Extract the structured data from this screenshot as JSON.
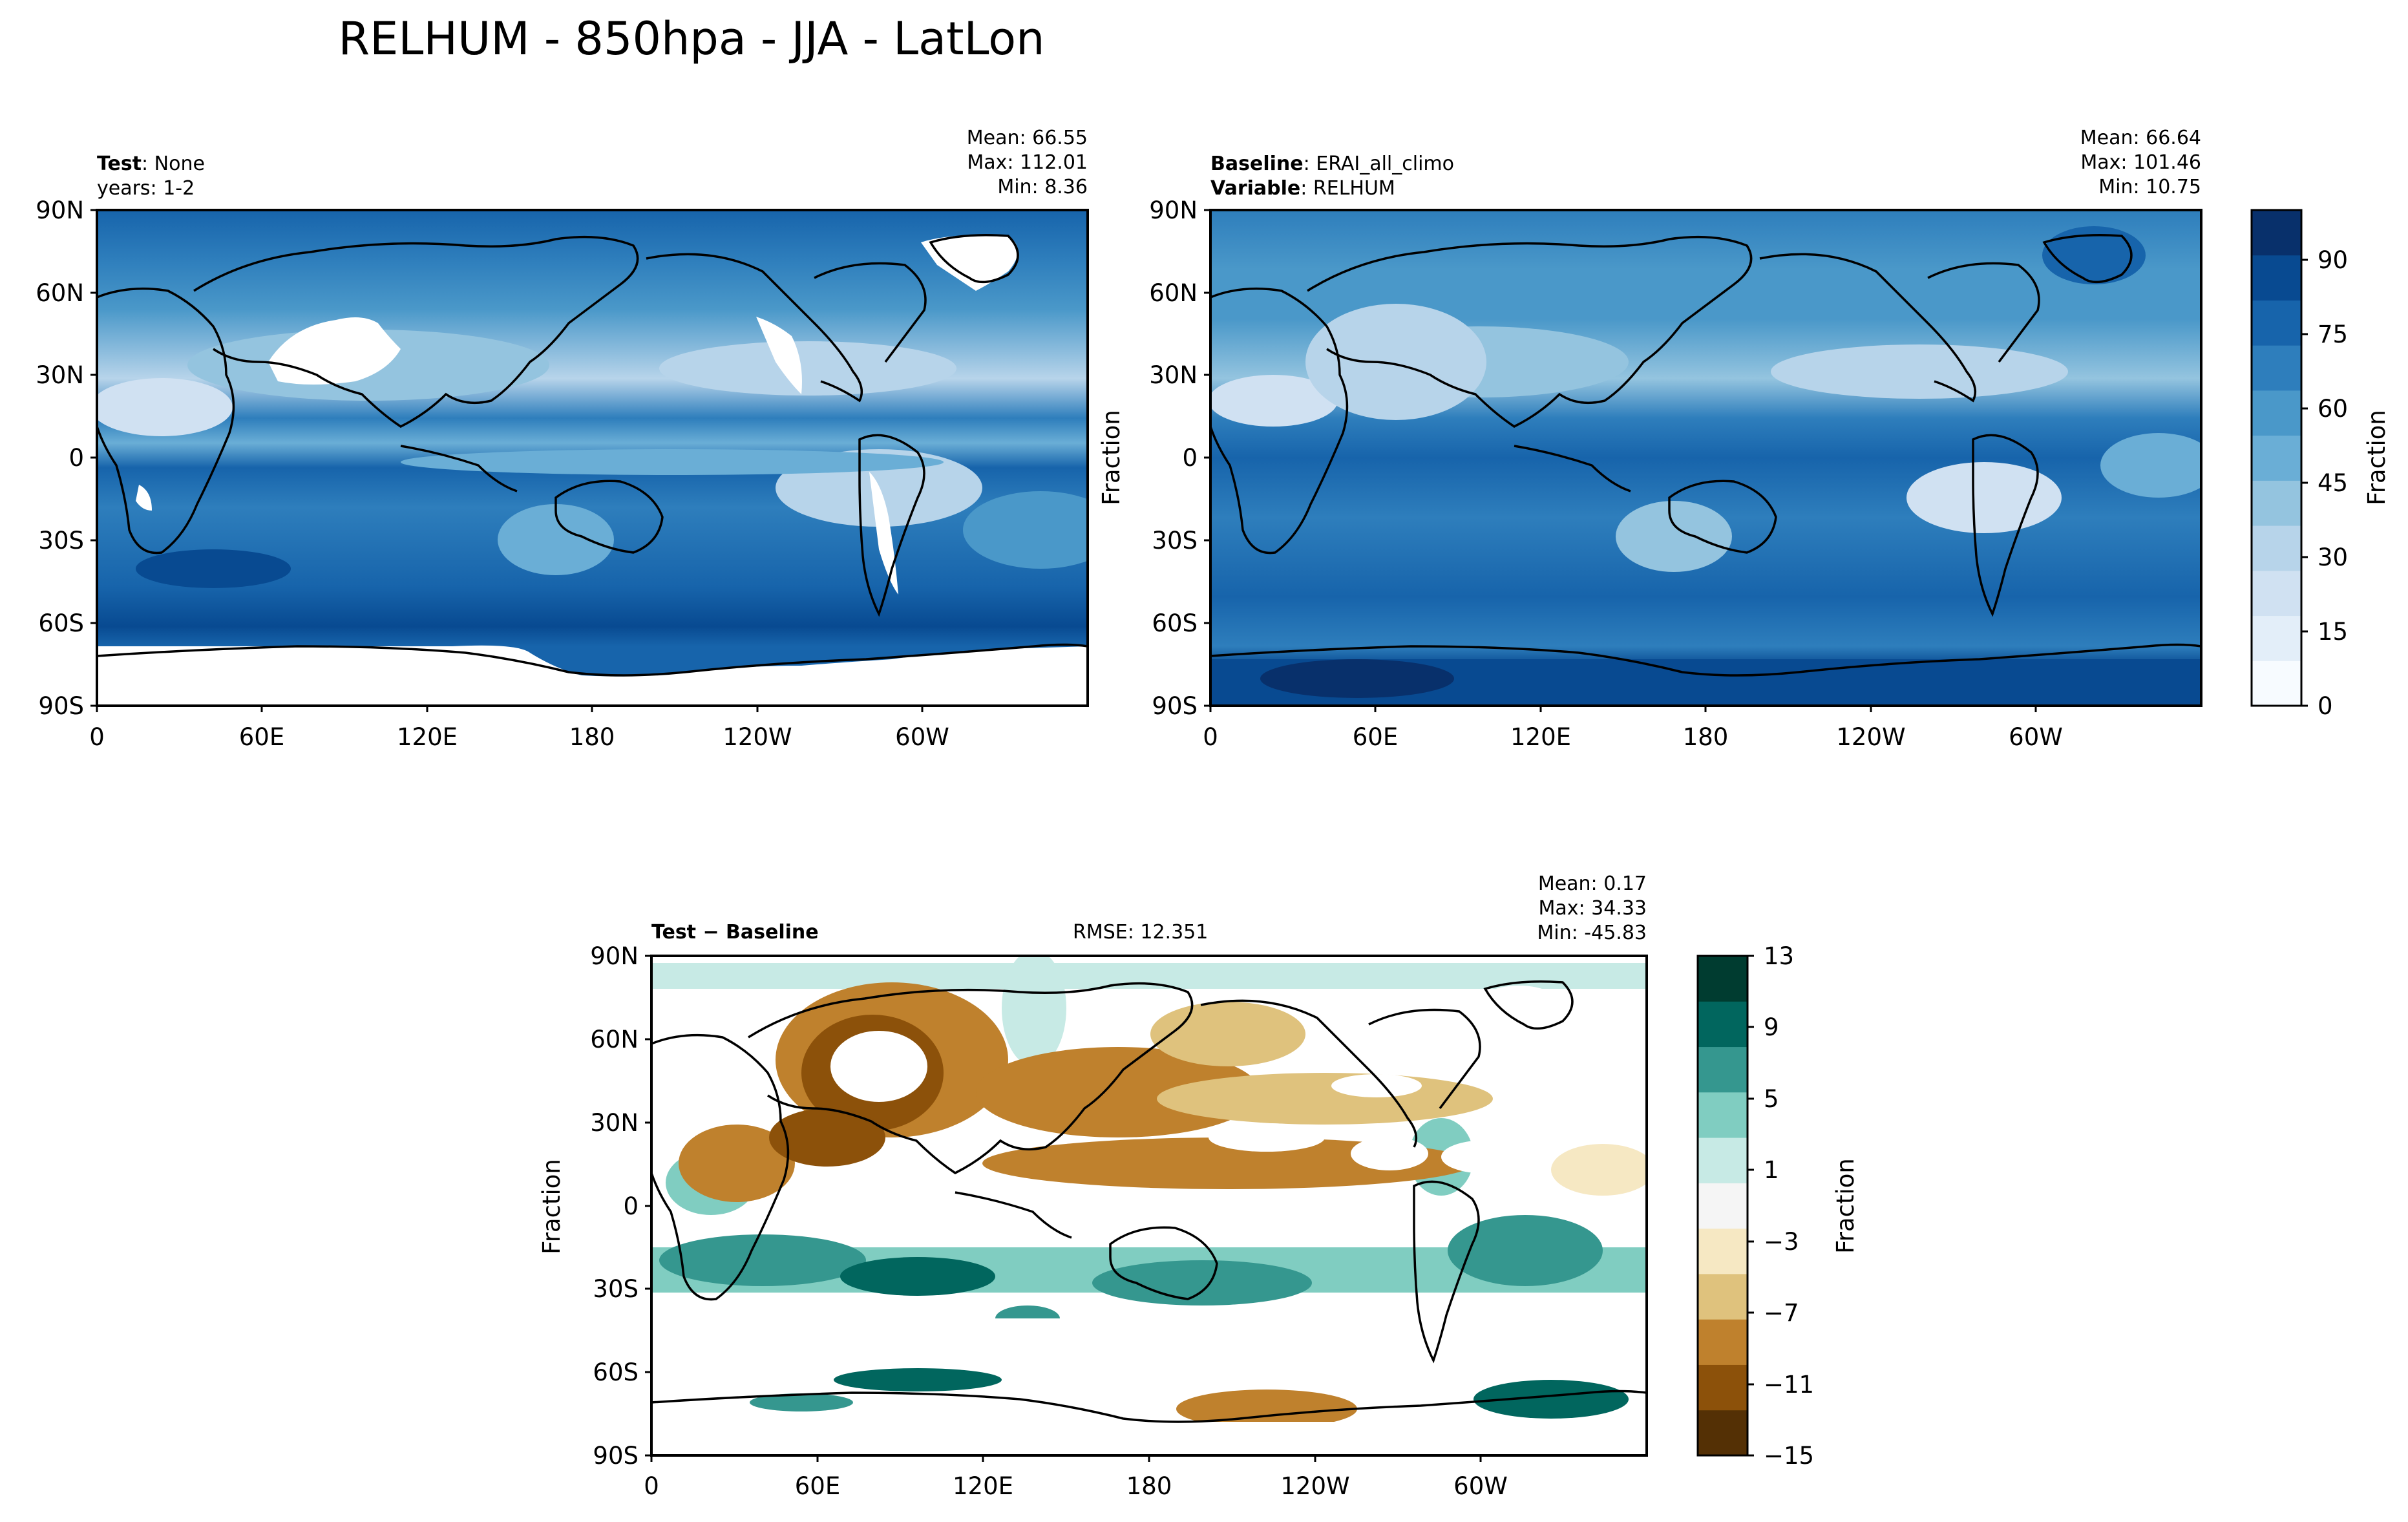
{
  "title": "RELHUM - 850hpa - JJA - LatLon",
  "colors": {
    "seq_levels": [
      "#f7fbff",
      "#e3eef9",
      "#d0e1f2",
      "#b7d4ea",
      "#94c4df",
      "#6aaed6",
      "#4a98c9",
      "#2e7ebc",
      "#1764ab",
      "#084a91",
      "#08306b"
    ],
    "diff_levels": [
      "#543005",
      "#8c510a",
      "#bf812d",
      "#dfc27d",
      "#f6e8c3",
      "#f5f5f5",
      "#c7eae5",
      "#80cdc1",
      "#35978f",
      "#01665e",
      "#003c30"
    ]
  },
  "panels": [
    {
      "id": "test",
      "label_bold": "Test",
      "label_rest": ": None",
      "label2_bold": "",
      "label2_rest": "years: 1-2",
      "stats": [
        "Mean: 66.55",
        "Max: 112.01",
        "Min:  8.36"
      ],
      "ylabel": "",
      "rmse": "",
      "xticks": [
        "0",
        "60E",
        "120E",
        "180",
        "120W",
        "60W"
      ],
      "yticks": [
        "90N",
        "60N",
        "30N",
        "0",
        "30S",
        "60S",
        "90S"
      ]
    },
    {
      "id": "baseline",
      "label_bold": "Baseline",
      "label_rest": ": ERAI_all_climo",
      "label2_bold": "Variable",
      "label2_rest": ": RELHUM",
      "stats": [
        "Mean: 66.64",
        "Max: 101.46",
        "Min: 10.75"
      ],
      "ylabel": "Fraction",
      "rmse": "",
      "xticks": [
        "0",
        "60E",
        "120E",
        "180",
        "120W",
        "60W"
      ],
      "yticks": [
        "90N",
        "60N",
        "30N",
        "0",
        "30S",
        "60S",
        "90S"
      ]
    },
    {
      "id": "diff",
      "label_bold": "Test − Baseline",
      "label_rest": "",
      "label2_bold": "",
      "label2_rest": "",
      "stats": [
        "Mean:  0.17",
        "Max: 34.33",
        "Min: -45.83"
      ],
      "ylabel": "Fraction",
      "rmse": "RMSE: 12.351",
      "xticks": [
        "0",
        "60E",
        "120E",
        "180",
        "120W",
        "60W"
      ],
      "yticks": [
        "90N",
        "60N",
        "30N",
        "0",
        "30S",
        "60S",
        "90S"
      ]
    }
  ],
  "colorbars": [
    {
      "label": "Fraction",
      "ticks": [
        "0",
        "15",
        "30",
        "45",
        "60",
        "75",
        "90"
      ]
    },
    {
      "label": "Fraction",
      "ticks": [
        "−15",
        "−11",
        "−7",
        "−3",
        "1",
        "5",
        "9",
        "13"
      ]
    }
  ],
  "chart_data": [
    {
      "type": "heatmap",
      "title": "Test: None",
      "subtitle": "years: 1-2",
      "ylabel": "",
      "x_ticks": [
        "0",
        "60E",
        "120E",
        "180",
        "120W",
        "60W"
      ],
      "y_ticks": [
        "90N",
        "60N",
        "30N",
        "0",
        "30S",
        "60S",
        "90S"
      ],
      "xlim": [
        0,
        360
      ],
      "ylim": [
        -90,
        90
      ],
      "stats": {
        "mean": 66.55,
        "max": 112.01,
        "min": 8.36
      },
      "colorbar": {
        "label": "Fraction",
        "range": [
          0,
          100
        ],
        "ticks": [
          0,
          15,
          30,
          45,
          60,
          75,
          90
        ]
      }
    },
    {
      "type": "heatmap",
      "title": "Baseline: ERAI_all_climo",
      "subtitle": "Variable: RELHUM",
      "ylabel": "Fraction",
      "x_ticks": [
        "0",
        "60E",
        "120E",
        "180",
        "120W",
        "60W"
      ],
      "y_ticks": [
        "90N",
        "60N",
        "30N",
        "0",
        "30S",
        "60S",
        "90S"
      ],
      "xlim": [
        0,
        360
      ],
      "ylim": [
        -90,
        90
      ],
      "stats": {
        "mean": 66.64,
        "max": 101.46,
        "min": 10.75
      },
      "colorbar": {
        "label": "Fraction",
        "range": [
          0,
          100
        ],
        "ticks": [
          0,
          15,
          30,
          45,
          60,
          75,
          90
        ]
      }
    },
    {
      "type": "heatmap",
      "title": "Test − Baseline",
      "ylabel": "Fraction",
      "x_ticks": [
        "0",
        "60E",
        "120E",
        "180",
        "120W",
        "60W"
      ],
      "y_ticks": [
        "90N",
        "60N",
        "30N",
        "0",
        "30S",
        "60S",
        "90S"
      ],
      "xlim": [
        0,
        360
      ],
      "ylim": [
        -90,
        90
      ],
      "rmse": 12.351,
      "stats": {
        "mean": 0.17,
        "max": 34.33,
        "min": -45.83
      },
      "colorbar": {
        "label": "Fraction",
        "range": [
          -15,
          13
        ],
        "ticks": [
          -15,
          -11,
          -7,
          -3,
          1,
          5,
          9,
          13
        ]
      }
    }
  ]
}
